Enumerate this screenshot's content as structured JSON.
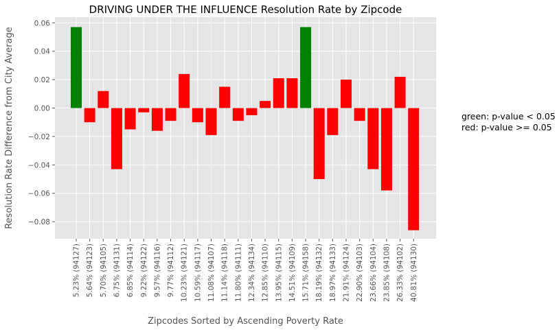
{
  "chart_data": {
    "type": "bar",
    "title": "DRIVING UNDER THE INFLUENCE Resolution Rate by Zipcode",
    "xlabel": "Zipcodes Sorted by Ascending Poverty Rate",
    "ylabel": "Resolution Rate Difference from City Average",
    "ylim": [
      -0.092,
      0.064
    ],
    "yticks": [
      0.06,
      0.04,
      0.02,
      0.0,
      -0.02,
      -0.04,
      -0.06,
      -0.08
    ],
    "ytick_labels": [
      "0.06",
      "0.04",
      "0.02",
      "0.00",
      "−0.02",
      "−0.04",
      "−0.06",
      "−0.08"
    ],
    "grid": true,
    "categories": [
      "5.23%  (94127)",
      "5.64%  (94123)",
      "5.70%  (94105)",
      "6.75%  (94131)",
      "6.85%  (94114)",
      "9.22%  (94122)",
      "9.57%  (94116)",
      "9.77%  (94112)",
      "10.23%  (94121)",
      "10.59%  (94117)",
      "11.08%  (94107)",
      "11.14%  (94118)",
      "11.80%  (94111)",
      "12.34%  (94134)",
      "12.85%  (94110)",
      "13.95%  (94115)",
      "14.51%  (94109)",
      "15.71%  (94158)",
      "18.19%  (94132)",
      "18.97%  (94133)",
      "21.91%  (94124)",
      "22.90%  (94103)",
      "23.66%  (94104)",
      "23.85%  (94108)",
      "26.33%  (94102)",
      "40.81%  (94130)"
    ],
    "values": [
      0.057,
      -0.01,
      0.012,
      -0.043,
      -0.015,
      -0.003,
      -0.016,
      -0.009,
      0.024,
      -0.01,
      -0.019,
      0.015,
      -0.009,
      -0.005,
      0.005,
      0.021,
      0.021,
      0.057,
      -0.05,
      -0.019,
      0.02,
      -0.009,
      -0.043,
      -0.058,
      0.022,
      -0.086
    ],
    "significant": [
      true,
      false,
      false,
      false,
      false,
      false,
      false,
      false,
      false,
      false,
      false,
      false,
      false,
      false,
      false,
      false,
      false,
      true,
      false,
      false,
      false,
      false,
      false,
      false,
      false,
      false
    ],
    "colors": {
      "significant": "#008000",
      "not_significant": "#ff0000",
      "plot_bg": "#e5e5e5",
      "grid": "#ffffff"
    },
    "legend": {
      "placement": "right",
      "lines": [
        "green: p-value < 0.05",
        "red: p-value >= 0.05"
      ]
    }
  }
}
